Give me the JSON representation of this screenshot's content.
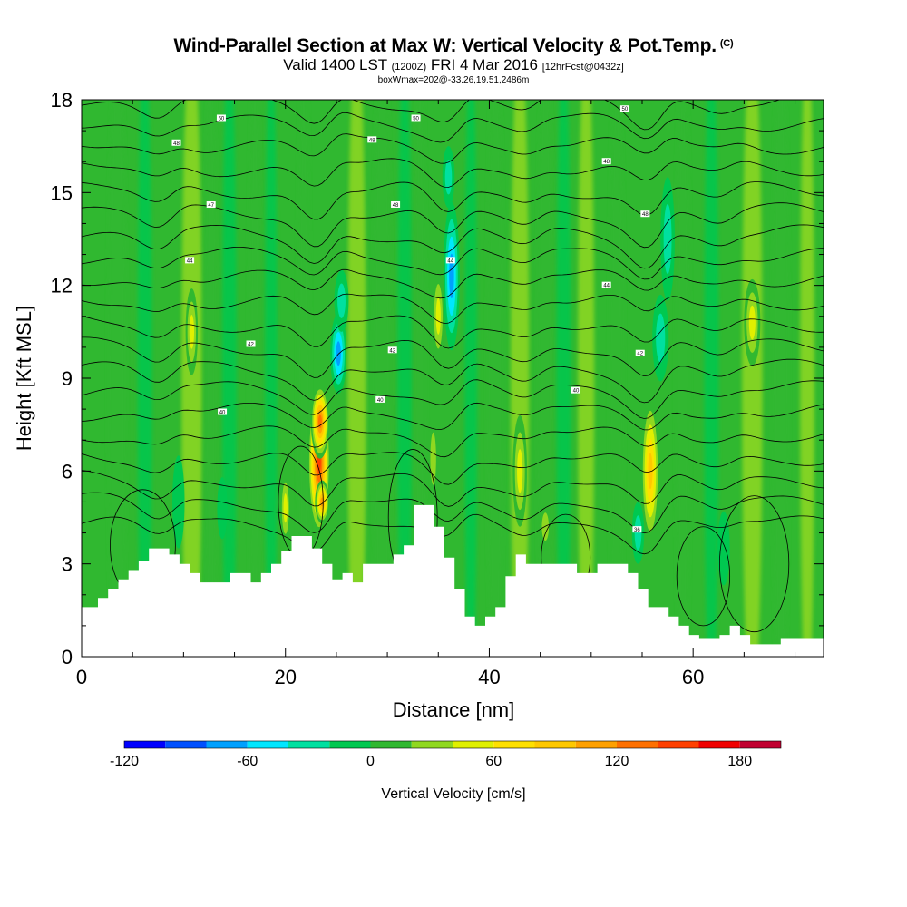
{
  "header": {
    "title": "Wind-Parallel Section at Max W: Vertical Velocity & Pot.Temp.",
    "title_mark": "(C)",
    "subtitle_main": "Valid 1400 LST",
    "subtitle_utc": "(1200Z)",
    "subtitle_date": "FRI 4 Mar 2016",
    "subtitle_fcst": "[12hrFcst@0432z]",
    "subsubtitle": "boxWmax=202@-33.26,19.51,2486m"
  },
  "chart_data": {
    "type": "heatmap",
    "xlabel": "Distance [nm]",
    "ylabel": "Height [Kft MSL]",
    "xlim": [
      0,
      72.8
    ],
    "ylim": [
      0,
      18
    ],
    "x_ticks": [
      0,
      20,
      40,
      60
    ],
    "y_ticks": [
      0,
      3,
      6,
      9,
      12,
      15,
      18
    ],
    "colorbar": {
      "label": "Vertical Velocity [cm/s]",
      "tick_values": [
        -120,
        -60,
        0,
        60,
        120,
        180
      ],
      "bins": [
        -120,
        -100,
        -80,
        -60,
        -40,
        -20,
        0,
        20,
        40,
        60,
        80,
        100,
        120,
        140,
        160,
        180,
        200
      ],
      "colors": [
        "#0000ff",
        "#0050ff",
        "#00a0ff",
        "#00e6ff",
        "#00e0a0",
        "#00c850",
        "#30b830",
        "#90d820",
        "#e0f000",
        "#ffe000",
        "#ffc800",
        "#ffa000",
        "#ff7000",
        "#ff4000",
        "#f00000",
        "#c00030"
      ]
    },
    "background_color": "#30b830",
    "terrain": [
      [
        0,
        1.6
      ],
      [
        1.6,
        1.6
      ],
      [
        1.6,
        1.9
      ],
      [
        2.6,
        1.9
      ],
      [
        2.6,
        2.2
      ],
      [
        3.6,
        2.2
      ],
      [
        3.6,
        2.5
      ],
      [
        4.6,
        2.5
      ],
      [
        4.6,
        2.8
      ],
      [
        5.6,
        2.8
      ],
      [
        5.6,
        3.1
      ],
      [
        6.6,
        3.1
      ],
      [
        6.6,
        3.5
      ],
      [
        8.6,
        3.5
      ],
      [
        8.6,
        3.3
      ],
      [
        9.6,
        3.3
      ],
      [
        9.6,
        3.0
      ],
      [
        10.6,
        3.0
      ],
      [
        10.6,
        2.7
      ],
      [
        11.6,
        2.7
      ],
      [
        11.6,
        2.4
      ],
      [
        14.6,
        2.4
      ],
      [
        14.6,
        2.7
      ],
      [
        16.6,
        2.7
      ],
      [
        16.6,
        2.4
      ],
      [
        17.6,
        2.4
      ],
      [
        17.6,
        2.7
      ],
      [
        18.6,
        2.7
      ],
      [
        18.6,
        3.0
      ],
      [
        19.6,
        3.0
      ],
      [
        19.6,
        3.4
      ],
      [
        20.6,
        3.4
      ],
      [
        20.6,
        3.9
      ],
      [
        22.6,
        3.9
      ],
      [
        22.6,
        3.5
      ],
      [
        23.6,
        3.5
      ],
      [
        23.6,
        3.0
      ],
      [
        24.6,
        3.0
      ],
      [
        24.6,
        2.5
      ],
      [
        25.6,
        2.5
      ],
      [
        25.6,
        2.7
      ],
      [
        26.6,
        2.7
      ],
      [
        26.6,
        2.4
      ],
      [
        27.6,
        2.4
      ],
      [
        27.6,
        3.0
      ],
      [
        30.6,
        3.0
      ],
      [
        30.6,
        3.3
      ],
      [
        31.6,
        3.3
      ],
      [
        31.6,
        3.6
      ],
      [
        32.6,
        3.6
      ],
      [
        32.6,
        4.9
      ],
      [
        34.6,
        4.9
      ],
      [
        34.6,
        4.2
      ],
      [
        35.6,
        4.2
      ],
      [
        35.6,
        3.2
      ],
      [
        36.6,
        3.2
      ],
      [
        36.6,
        2.2
      ],
      [
        37.6,
        2.2
      ],
      [
        37.6,
        1.3
      ],
      [
        38.6,
        1.3
      ],
      [
        38.6,
        1.0
      ],
      [
        39.6,
        1.0
      ],
      [
        39.6,
        1.3
      ],
      [
        40.6,
        1.3
      ],
      [
        40.6,
        1.6
      ],
      [
        41.6,
        1.6
      ],
      [
        41.6,
        2.6
      ],
      [
        42.6,
        2.6
      ],
      [
        42.6,
        3.3
      ],
      [
        43.6,
        3.3
      ],
      [
        43.6,
        3.0
      ],
      [
        48.6,
        3.0
      ],
      [
        48.6,
        2.7
      ],
      [
        50.6,
        2.7
      ],
      [
        50.6,
        3.0
      ],
      [
        53.6,
        3.0
      ],
      [
        53.6,
        2.7
      ],
      [
        54.6,
        2.7
      ],
      [
        54.6,
        2.2
      ],
      [
        55.6,
        2.2
      ],
      [
        55.6,
        1.6
      ],
      [
        57.6,
        1.6
      ],
      [
        57.6,
        1.3
      ],
      [
        58.6,
        1.3
      ],
      [
        58.6,
        1.0
      ],
      [
        59.6,
        1.0
      ],
      [
        59.6,
        0.7
      ],
      [
        60.6,
        0.7
      ],
      [
        60.6,
        0.6
      ],
      [
        62.6,
        0.6
      ],
      [
        62.6,
        0.7
      ],
      [
        63.6,
        0.7
      ],
      [
        63.6,
        1.0
      ],
      [
        64.6,
        1.0
      ],
      [
        64.6,
        0.7
      ],
      [
        65.6,
        0.7
      ],
      [
        65.6,
        0.4
      ],
      [
        68.6,
        0.4
      ],
      [
        68.6,
        0.6
      ],
      [
        72.8,
        0.6
      ]
    ],
    "w_cells": [
      {
        "x": 23.3,
        "y": 6.3,
        "rx": 1.1,
        "ry": 2.4,
        "w": 175
      },
      {
        "x": 23.4,
        "y": 7.6,
        "rx": 0.9,
        "ry": 1.2,
        "w": 140
      },
      {
        "x": 23.6,
        "y": 5.0,
        "rx": 0.7,
        "ry": 0.7,
        "w": 120
      },
      {
        "x": 25.2,
        "y": 9.8,
        "rx": 0.8,
        "ry": 1.3,
        "w": -80
      },
      {
        "x": 25.5,
        "y": 11.5,
        "rx": 0.7,
        "ry": 1.0,
        "w": -40
      },
      {
        "x": 36.3,
        "y": 12.3,
        "rx": 0.8,
        "ry": 2.4,
        "w": -90
      },
      {
        "x": 36.0,
        "y": 15.5,
        "rx": 0.6,
        "ry": 1.0,
        "w": -40
      },
      {
        "x": 35.0,
        "y": 11.0,
        "rx": 0.6,
        "ry": 1.5,
        "w": 60
      },
      {
        "x": 55.8,
        "y": 6.0,
        "rx": 0.9,
        "ry": 2.4,
        "w": 100
      },
      {
        "x": 56.8,
        "y": 10.3,
        "rx": 0.8,
        "ry": 1.4,
        "w": -50
      },
      {
        "x": 57.5,
        "y": 13.5,
        "rx": 0.7,
        "ry": 2.0,
        "w": -40
      },
      {
        "x": 54.6,
        "y": 4.0,
        "rx": 0.6,
        "ry": 1.0,
        "w": -40
      },
      {
        "x": 10.8,
        "y": 10.5,
        "rx": 0.6,
        "ry": 1.4,
        "w": 60
      },
      {
        "x": 9.5,
        "y": 5.0,
        "rx": 0.6,
        "ry": 1.5,
        "w": -30
      },
      {
        "x": 13.8,
        "y": 4.8,
        "rx": 0.5,
        "ry": 1.0,
        "w": -30
      },
      {
        "x": 20.0,
        "y": 4.8,
        "rx": 0.5,
        "ry": 1.2,
        "w": 60
      },
      {
        "x": 43.0,
        "y": 6.0,
        "rx": 0.7,
        "ry": 1.8,
        "w": 60
      },
      {
        "x": 34.5,
        "y": 6.4,
        "rx": 0.5,
        "ry": 1.5,
        "w": 50
      },
      {
        "x": 65.8,
        "y": 10.8,
        "rx": 0.8,
        "ry": 1.4,
        "w": 60
      },
      {
        "x": 63.0,
        "y": 3.5,
        "rx": 0.6,
        "ry": 1.2,
        "w": -30
      },
      {
        "x": 45.5,
        "y": 4.2,
        "rx": 0.6,
        "ry": 0.8,
        "w": 40
      }
    ],
    "contour_labels": [
      {
        "text": "50",
        "x": 13.7,
        "y": 17.4
      },
      {
        "text": "48",
        "x": 9.3,
        "y": 16.6
      },
      {
        "text": "47",
        "x": 12.7,
        "y": 14.6
      },
      {
        "text": "44",
        "x": 10.6,
        "y": 12.8
      },
      {
        "text": "42",
        "x": 16.6,
        "y": 10.1
      },
      {
        "text": "40",
        "x": 13.8,
        "y": 7.9
      },
      {
        "text": "50",
        "x": 32.8,
        "y": 17.4
      },
      {
        "text": "48",
        "x": 28.5,
        "y": 16.7
      },
      {
        "text": "48",
        "x": 30.8,
        "y": 14.6
      },
      {
        "text": "44",
        "x": 36.2,
        "y": 12.8
      },
      {
        "text": "42",
        "x": 30.5,
        "y": 9.9
      },
      {
        "text": "40",
        "x": 29.3,
        "y": 8.3
      },
      {
        "text": "50",
        "x": 53.3,
        "y": 17.7
      },
      {
        "text": "48",
        "x": 51.5,
        "y": 16.0
      },
      {
        "text": "48",
        "x": 55.3,
        "y": 14.3
      },
      {
        "text": "44",
        "x": 51.5,
        "y": 12.0
      },
      {
        "text": "42",
        "x": 54.8,
        "y": 9.8
      },
      {
        "text": "40",
        "x": 48.5,
        "y": 8.6
      },
      {
        "text": "36",
        "x": 54.5,
        "y": 4.1
      }
    ]
  }
}
